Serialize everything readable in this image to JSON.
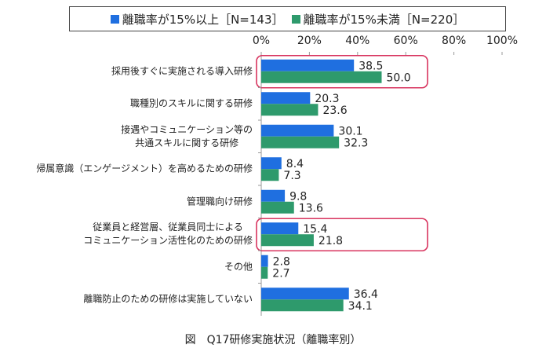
{
  "chart_data": {
    "type": "bar",
    "orientation": "horizontal",
    "caption": "図　Q17研修実施状況（離職率別）",
    "categories": [
      "採用後すぐに実施される導入研修",
      "職種別のスキルに関する研修",
      "接遇やコミュニケーション等の\n共通スキルに関する研修",
      "帰属意識（エンゲージメント）を高めるための研修",
      "管理職向け研修",
      "従業員と経営層、従業員同士による\nコミュニケーション活性化のための研修",
      "その他",
      "離職防止のための研修は実施していない"
    ],
    "series": [
      {
        "name": "離職率が15%以上［N=143］",
        "color": "#1f6fe0",
        "values": [
          38.5,
          20.3,
          30.1,
          8.4,
          9.8,
          15.4,
          2.8,
          36.4
        ],
        "value_labels": [
          "38.5",
          "20.3",
          "30.1",
          "8.4",
          "9.8",
          "15.4",
          "2.8",
          "36.4"
        ]
      },
      {
        "name": "離職率が15%未満［N=220］",
        "color": "#2e9a6c",
        "values": [
          50.0,
          23.6,
          32.3,
          7.3,
          13.6,
          21.8,
          2.7,
          34.1
        ],
        "value_labels": [
          "50.0",
          "23.6",
          "32.3",
          "7.3",
          "13.6",
          "21.8",
          "2.7",
          "34.1"
        ]
      }
    ],
    "xlim": [
      0,
      100
    ],
    "xticks": [
      {
        "value": 0,
        "label": "0%"
      },
      {
        "value": 20,
        "label": "20%"
      },
      {
        "value": 40,
        "label": "40%"
      },
      {
        "value": 60,
        "label": "60%"
      },
      {
        "value": 80,
        "label": "80%"
      },
      {
        "value": 100,
        "label": "100%"
      }
    ],
    "grid": false
  }
}
